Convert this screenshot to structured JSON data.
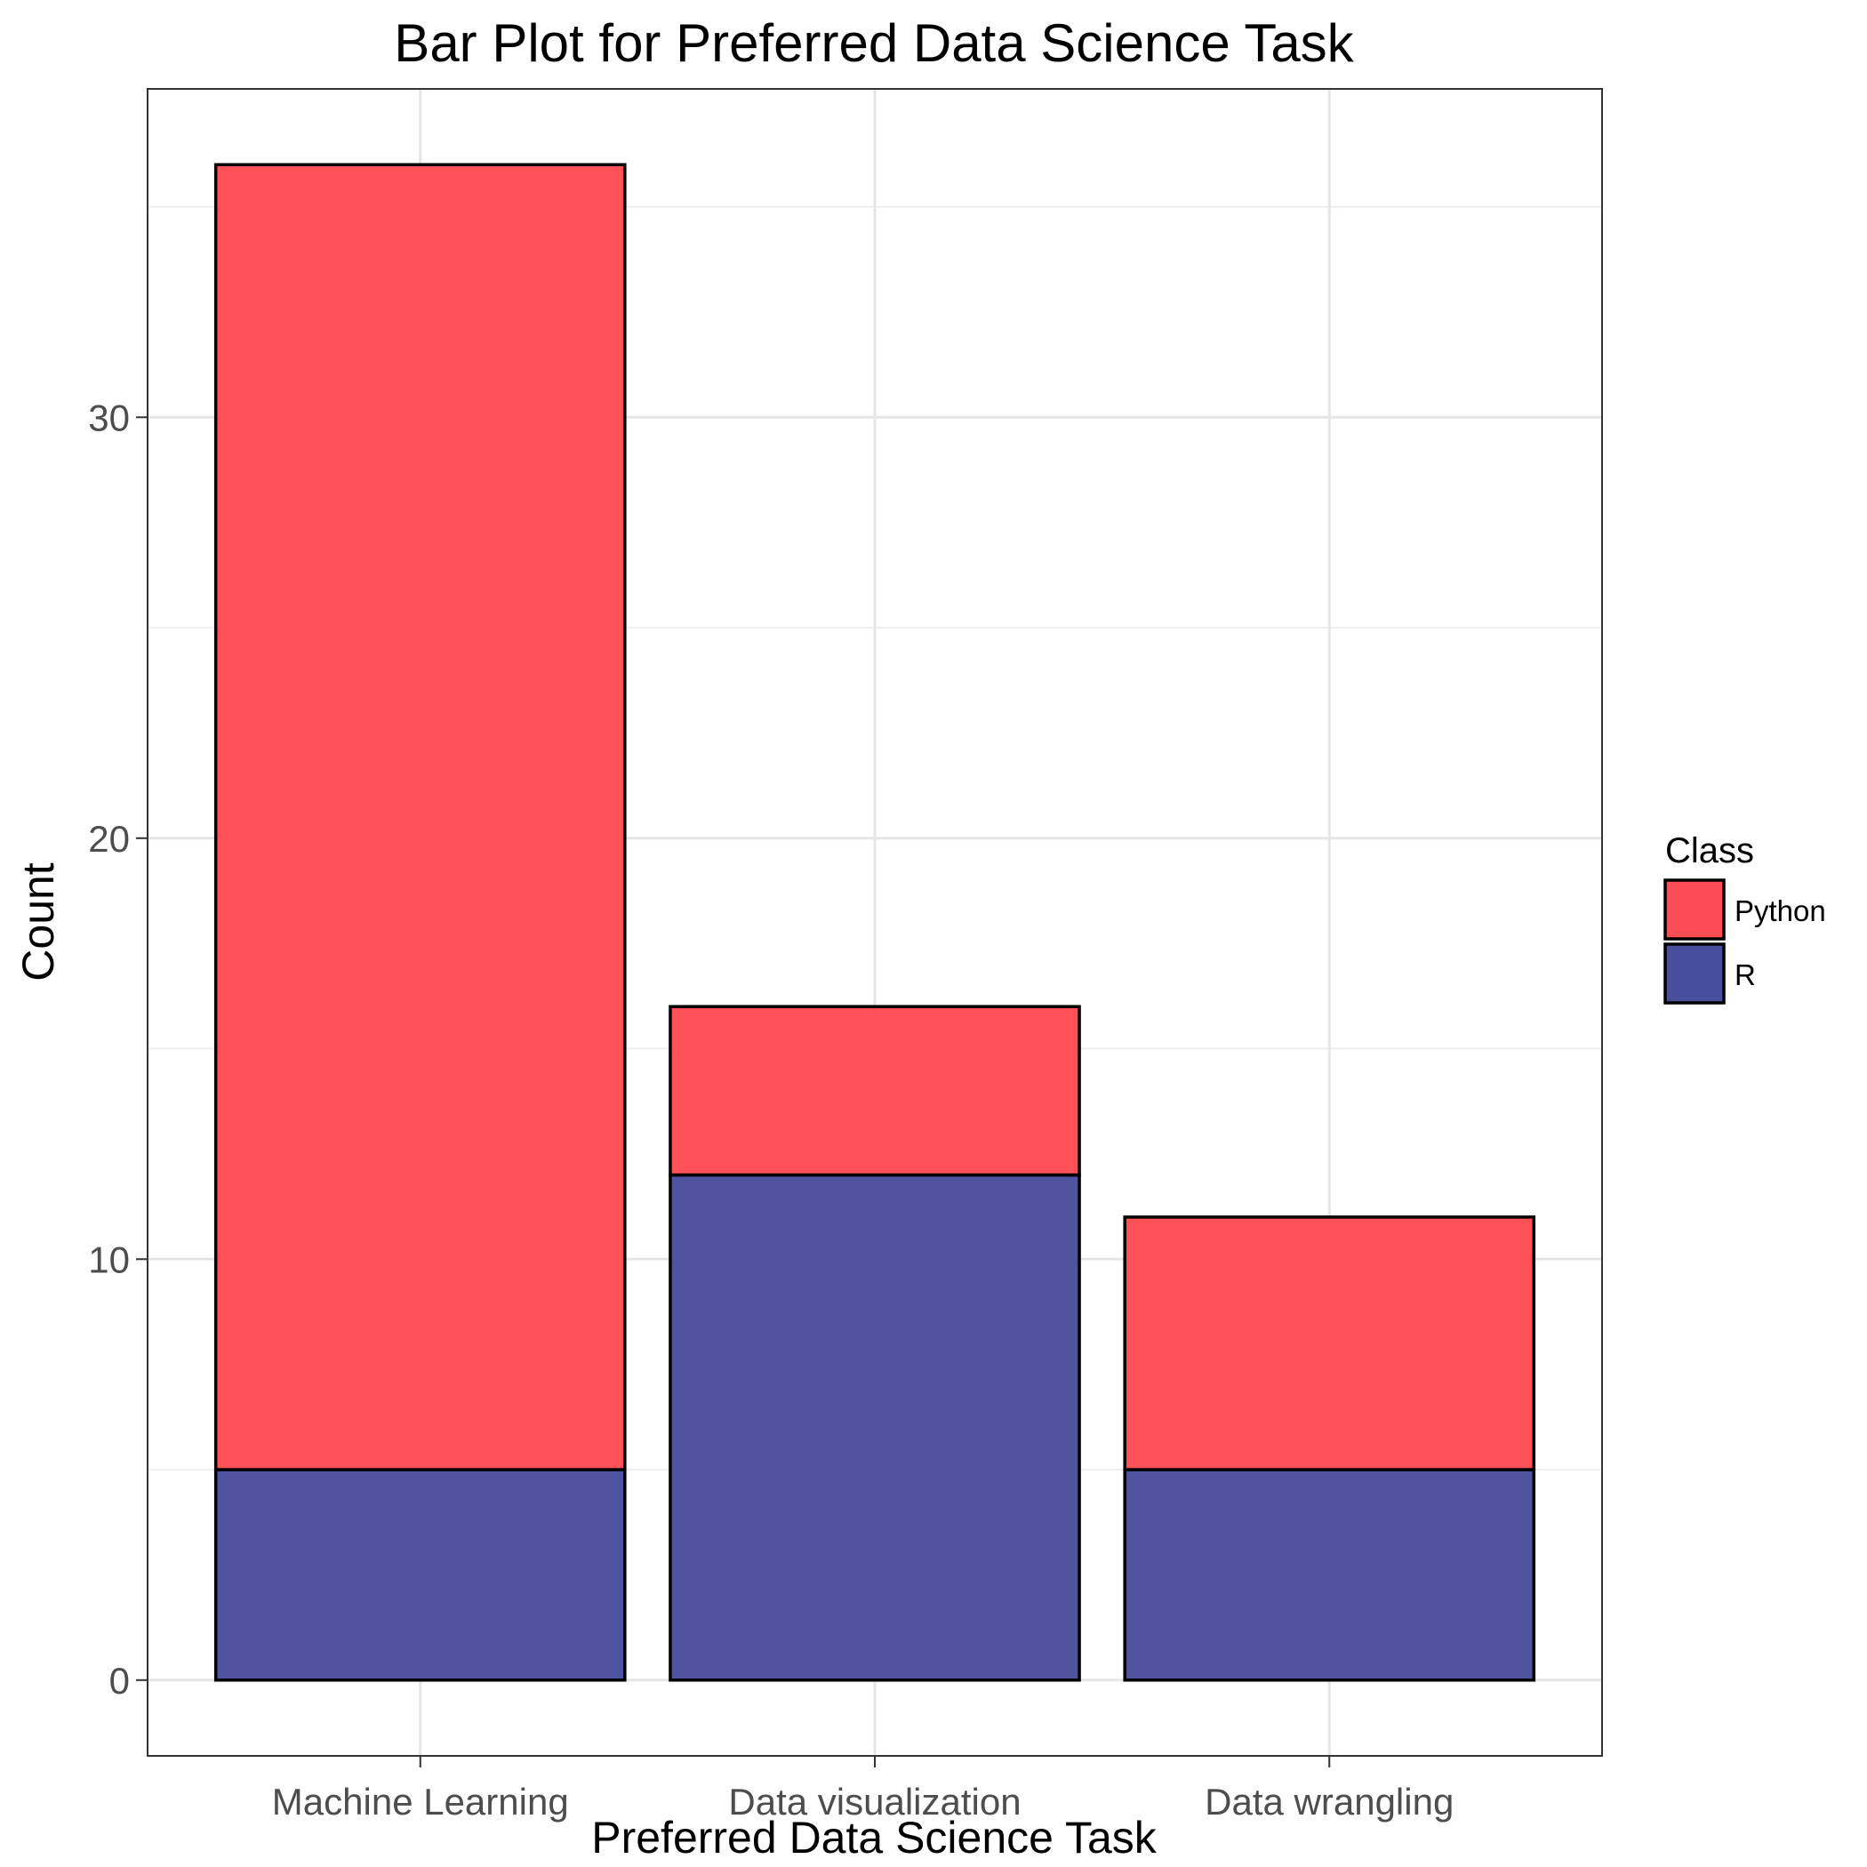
{
  "chart_data": {
    "type": "bar",
    "stacked": true,
    "title": "Bar Plot for Preferred Data Science Task",
    "xlabel": "Preferred Data Science Task",
    "ylabel": "Count",
    "categories": [
      "Machine Learning",
      "Data visualization",
      "Data wrangling"
    ],
    "series": [
      {
        "name": "R",
        "color": "#4a4f9d",
        "values": [
          5,
          12,
          5
        ]
      },
      {
        "name": "Python",
        "color": "#fd4d54",
        "values": [
          31,
          4,
          6
        ]
      }
    ],
    "ylim": [
      -1.8,
      37.8
    ],
    "yticks": [
      0,
      10,
      20,
      30
    ],
    "ytick_labels": [
      "0",
      "10",
      "20",
      "30"
    ],
    "grid": true,
    "legend": {
      "title": "Class",
      "position": "right",
      "entries": [
        "Python",
        "R"
      ]
    }
  }
}
